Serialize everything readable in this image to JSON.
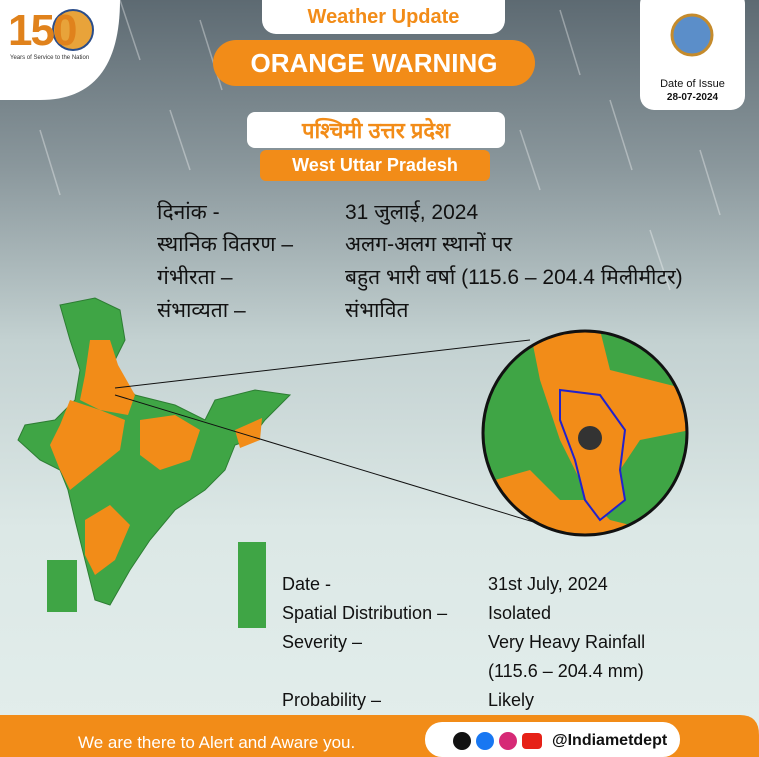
{
  "header": {
    "logo_number": "150",
    "logo_caption": "Years of Service to the Nation",
    "kicker": "Weather Update",
    "title": "ORANGE WARNING",
    "issue_label": "Date of Issue",
    "issue_date": "28-07-2024"
  },
  "region": {
    "hindi": "पश्चिमी उत्तर प्रदेश",
    "english": "West Uttar Pradesh"
  },
  "hindi_details": {
    "rows": [
      {
        "label": "दिनांक -",
        "value": "31 जुलाई, 2024"
      },
      {
        "label": "स्थानिक वितरण –",
        "value": "अलग-अलग स्थानों पर"
      },
      {
        "label": "गंभीरता  –",
        "value": "बहुत भारी वर्षा (115.6 – 204.4  मिलीमीटर)"
      },
      {
        "label": "संभाव्यता –",
        "value": "संभावित"
      }
    ]
  },
  "english_details": {
    "rows": [
      {
        "label": "Date -",
        "value": [
          "31st July, 2024"
        ]
      },
      {
        "label": "Spatial Distribution –",
        "value": [
          "Isolated"
        ]
      },
      {
        "label": "Severity –",
        "value": [
          "Very Heavy Rainfall",
          "(115.6 – 204.4 mm)"
        ]
      },
      {
        "label": "Probability –",
        "value": [
          "Likely"
        ]
      }
    ]
  },
  "footer": {
    "tagline": "We are there to Alert and Aware you.",
    "handle": "@Indiametdept"
  }
}
